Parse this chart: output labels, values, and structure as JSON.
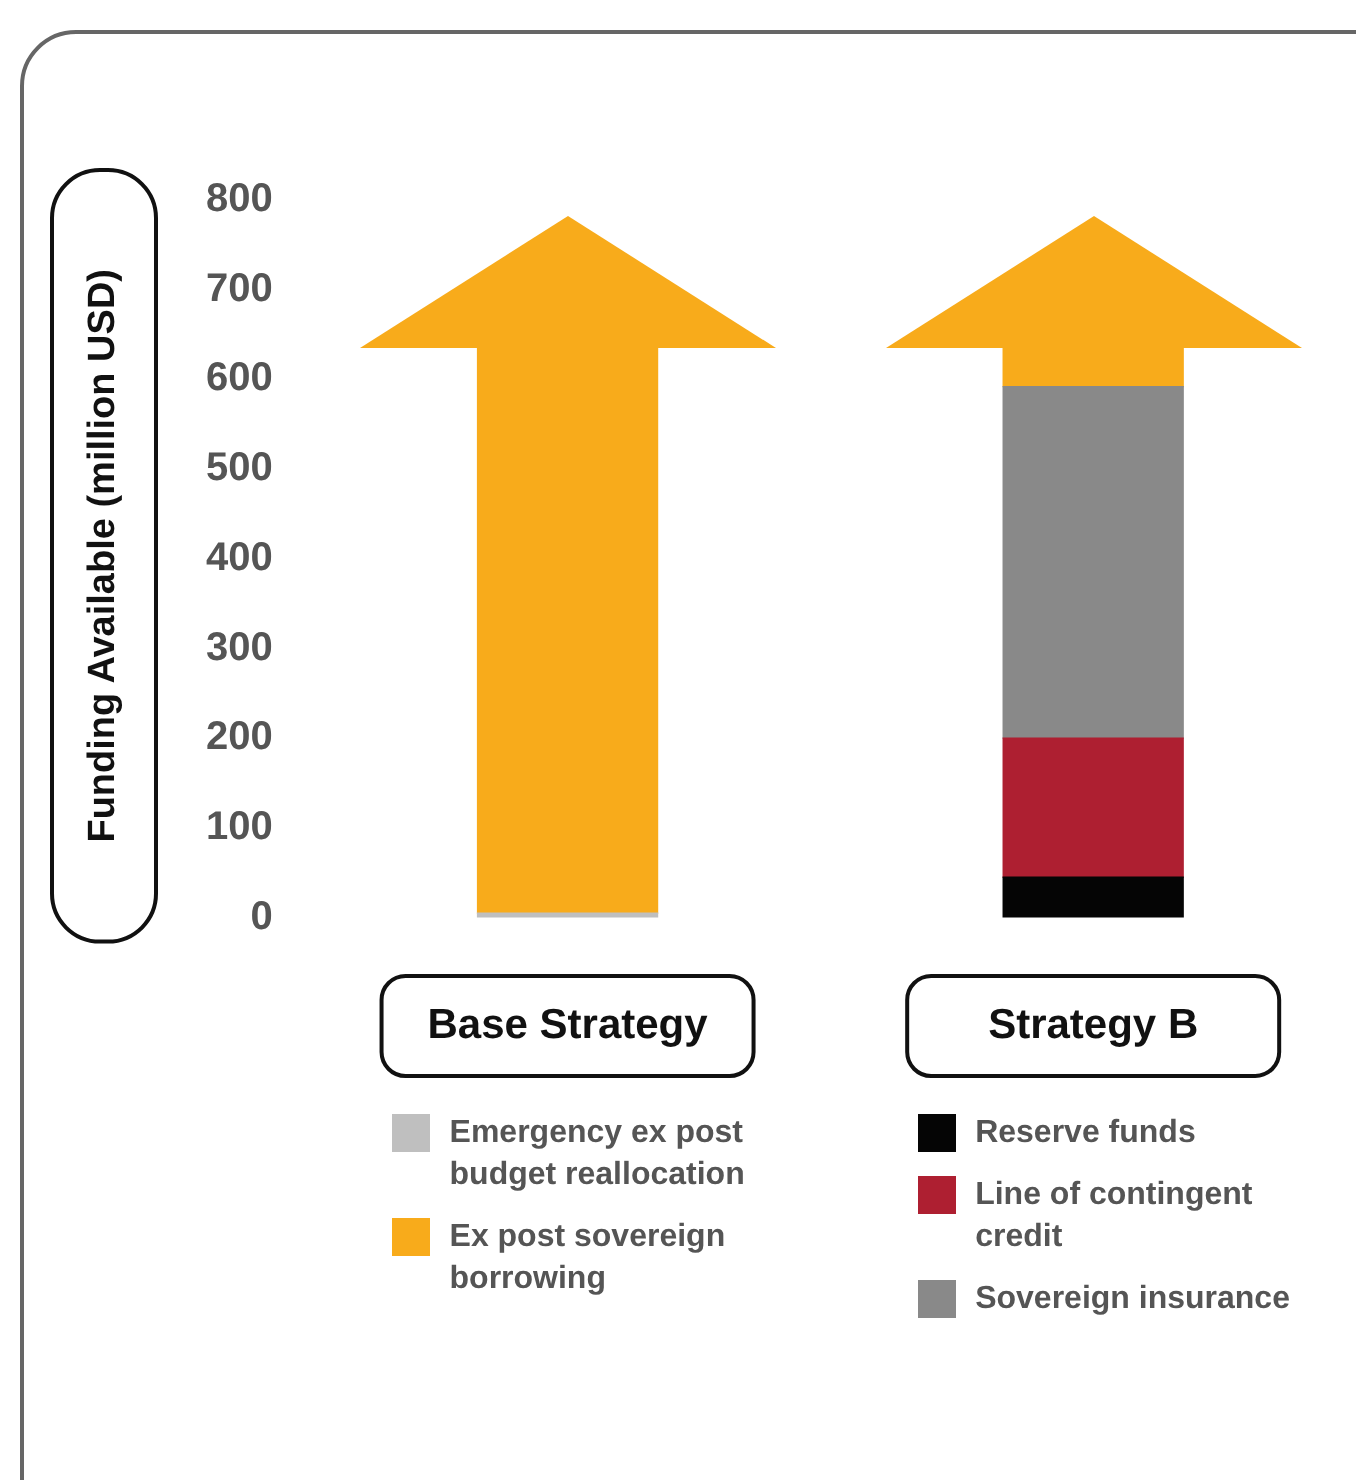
{
  "chart_data": {
    "type": "bar",
    "stacked": true,
    "ylabel": "Funding Available (million USD)",
    "categories": [
      "Base Strategy",
      "Strategy B"
    ],
    "series": [
      {
        "name": "Emergency ex post budget reallocation",
        "color": "#bfbfbf",
        "values": [
          5,
          null
        ]
      },
      {
        "name": "Reserve funds",
        "color": "#050505",
        "values": [
          null,
          45
        ]
      },
      {
        "name": "Line of contingent credit",
        "color": "#ae1f31",
        "values": [
          null,
          155
        ]
      },
      {
        "name": "Sovereign insurance",
        "color": "#898989",
        "values": [
          null,
          392
        ]
      },
      {
        "name": "Ex post sovereign borrowing",
        "color": "#f8ab1b",
        "values": [
          631,
          44
        ]
      }
    ],
    "ylim": [
      0,
      800
    ],
    "yticks": [
      0,
      100,
      200,
      300,
      400,
      500,
      600,
      700,
      800
    ],
    "grid": false,
    "legend": "bottom"
  }
}
